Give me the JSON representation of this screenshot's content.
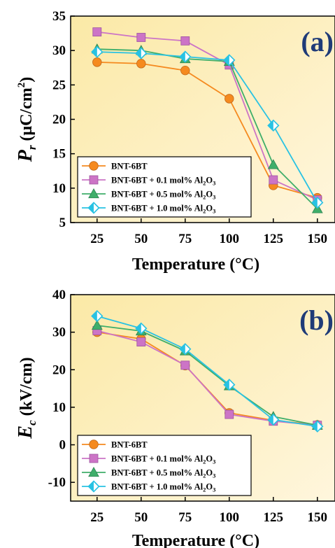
{
  "chart_data": [
    {
      "type": "line",
      "panel_label": "(a)",
      "xlabel": "Temperature (°C)",
      "ylabel": {
        "main": "P",
        "sub": "r",
        "unit_pre": " (μC/cm",
        "unit_sup": "2",
        "unit_post": ")"
      },
      "x": [
        25,
        50,
        75,
        100,
        125,
        150
      ],
      "xticks": [
        "25",
        "50",
        "75",
        "100",
        "125",
        "150"
      ],
      "xlim": [
        10,
        160
      ],
      "ylim": [
        5,
        35
      ],
      "yticks": [
        "5",
        "10",
        "15",
        "20",
        "25",
        "30",
        "35"
      ],
      "background": [
        "#fbe9a6",
        "#fff6dd"
      ],
      "legend_position": "lower-left",
      "series": [
        {
          "name": {
            "main": "BNT-6BT"
          },
          "color": "#f58a1f",
          "marker": "circle",
          "values": [
            28.3,
            28.1,
            27.1,
            23.0,
            10.4,
            8.6
          ]
        },
        {
          "name": {
            "main": "BNT-6BT + 0.1 mol% Al",
            "sub1": "2",
            "mid": "O",
            "sub2": "3"
          },
          "color": "#cc74c6",
          "marker": "square",
          "values": [
            32.7,
            31.9,
            31.4,
            27.9,
            11.2,
            8.3
          ]
        },
        {
          "name": {
            "main": "BNT-6BT + 0.5 mol% Al",
            "sub1": "2",
            "mid": "O",
            "sub2": "3"
          },
          "color": "#3fae6a",
          "marker": "triangle",
          "values": [
            30.2,
            30.0,
            28.8,
            28.4,
            13.4,
            7.0
          ]
        },
        {
          "name": {
            "main": "BNT-6BT + 1.0 mol% Al",
            "sub1": "2",
            "mid": "O",
            "sub2": "3"
          },
          "color": "#28c2e3",
          "marker": "diamond",
          "values": [
            29.8,
            29.6,
            29.1,
            28.6,
            19.1,
            7.9
          ]
        }
      ]
    },
    {
      "type": "line",
      "panel_label": "(b)",
      "xlabel": "Temperature (°C)",
      "ylabel": {
        "main": "E",
        "sub": "c",
        "unit_pre": " (kV/cm)",
        "unit_sup": "",
        "unit_post": ""
      },
      "x": [
        25,
        50,
        75,
        100,
        125,
        150
      ],
      "xticks": [
        "25",
        "50",
        "75",
        "100",
        "125",
        "150"
      ],
      "xlim": [
        10,
        160
      ],
      "ylim": [
        -15,
        40
      ],
      "yticks": [
        "-10",
        "0",
        "10",
        "20",
        "30",
        "40"
      ],
      "background": [
        "#fbe9a6",
        "#fff6dd"
      ],
      "legend_position": "lower-left",
      "series": [
        {
          "name": {
            "main": "BNT-6BT"
          },
          "color": "#f58a1f",
          "marker": "circle",
          "values": [
            30.0,
            28.2,
            21.1,
            8.5,
            6.5,
            5.3
          ]
        },
        {
          "name": {
            "main": "BNT-6BT + 0.1 mol% Al",
            "sub1": "2",
            "mid": "O",
            "sub2": "3"
          },
          "color": "#cc74c6",
          "marker": "square",
          "values": [
            30.4,
            27.4,
            21.2,
            8.1,
            6.3,
            5.2
          ]
        },
        {
          "name": {
            "main": "BNT-6BT + 0.5 mol% Al",
            "sub1": "2",
            "mid": "O",
            "sub2": "3"
          },
          "color": "#3fae6a",
          "marker": "triangle",
          "values": [
            31.8,
            30.3,
            25.0,
            15.7,
            7.5,
            5.2
          ]
        },
        {
          "name": {
            "main": "BNT-6BT + 1.0 mol% Al",
            "sub1": "2",
            "mid": "O",
            "sub2": "3"
          },
          "color": "#28c2e3",
          "marker": "diamond",
          "values": [
            34.3,
            31.0,
            25.5,
            16.0,
            6.7,
            4.9
          ]
        }
      ]
    }
  ]
}
